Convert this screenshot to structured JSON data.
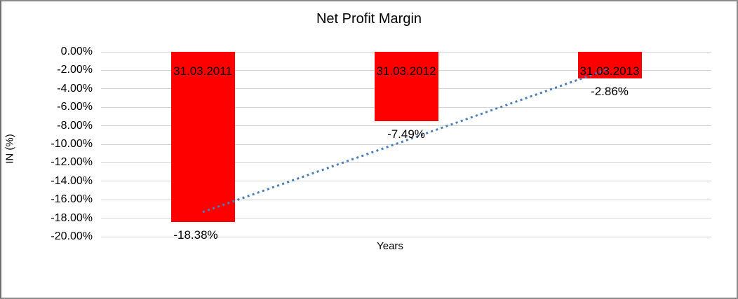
{
  "chart_data": {
    "type": "bar",
    "title": "Net Profit Margin",
    "xlabel": "Years",
    "ylabel": "IN (%)",
    "categories": [
      "31.03.2011",
      "31.03.2012",
      "31.03.2013"
    ],
    "values": [
      -18.38,
      -7.49,
      -2.86
    ],
    "data_labels": [
      "-18.38%",
      "-7.49%",
      "-2.86%"
    ],
    "ylim": [
      -20,
      0
    ],
    "ytick_step": 2,
    "ytick_labels": [
      "0.00%",
      "-2.00%",
      "-4.00%",
      "-6.00%",
      "-8.00%",
      "-10.00%",
      "-12.00%",
      "-14.00%",
      "-16.00%",
      "-18.00%",
      "-20.00%"
    ],
    "grid": true,
    "legend": "none",
    "bar_color": "#ff0000",
    "gridline_color": "#d3d3d3",
    "trendline": {
      "type": "linear",
      "style": "dotted",
      "color": "#4a7ebb",
      "start_value": -17.34,
      "end_value": -1.82
    }
  }
}
